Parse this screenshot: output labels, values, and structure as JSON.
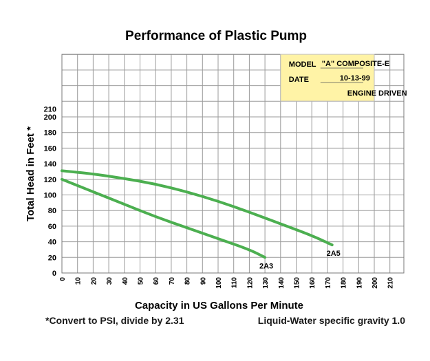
{
  "chart_data": {
    "type": "line",
    "title": "Performance of Plastic Pump",
    "xlabel": "Capacity in US Gallons Per Minute",
    "ylabel": "Total Head in Feet *",
    "xlim": [
      0,
      220
    ],
    "ylim": [
      0,
      220
    ],
    "x_ticks": [
      "0",
      "10",
      "20",
      "30",
      "40",
      "50",
      "60",
      "70",
      "80",
      "90",
      "100",
      "110",
      "120",
      "130",
      "140",
      "150",
      "160",
      "170",
      "180",
      "190",
      "200",
      "210"
    ],
    "y_ticks": [
      "0",
      "20",
      "40",
      "60",
      "80",
      "100",
      "120",
      "140",
      "160",
      "180",
      "200",
      "210"
    ],
    "grid": true,
    "series": [
      {
        "name": "2A3",
        "color": "#4caf50",
        "points": [
          [
            0,
            120
          ],
          [
            20,
            104
          ],
          [
            40,
            88
          ],
          [
            60,
            72
          ],
          [
            80,
            58
          ],
          [
            100,
            44
          ],
          [
            120,
            30
          ],
          [
            130,
            20
          ]
        ]
      },
      {
        "name": "2A5",
        "color": "#4caf50",
        "points": [
          [
            0,
            131
          ],
          [
            20,
            127
          ],
          [
            40,
            121
          ],
          [
            60,
            114
          ],
          [
            80,
            104
          ],
          [
            100,
            92
          ],
          [
            120,
            78
          ],
          [
            140,
            63
          ],
          [
            160,
            48
          ],
          [
            173,
            36
          ]
        ]
      }
    ],
    "info_box": {
      "model_label": "MODEL",
      "model_value": "\"A\" COMPOSITE-E",
      "date_label": "DATE",
      "date_value": "10-13-99",
      "driver": "ENGINE DRIVEN",
      "fill": "#fff3a6"
    }
  },
  "footnotes": {
    "left": "*Convert to PSI, divide by 2.31",
    "right": "Liquid-Water specific gravity 1.0"
  }
}
